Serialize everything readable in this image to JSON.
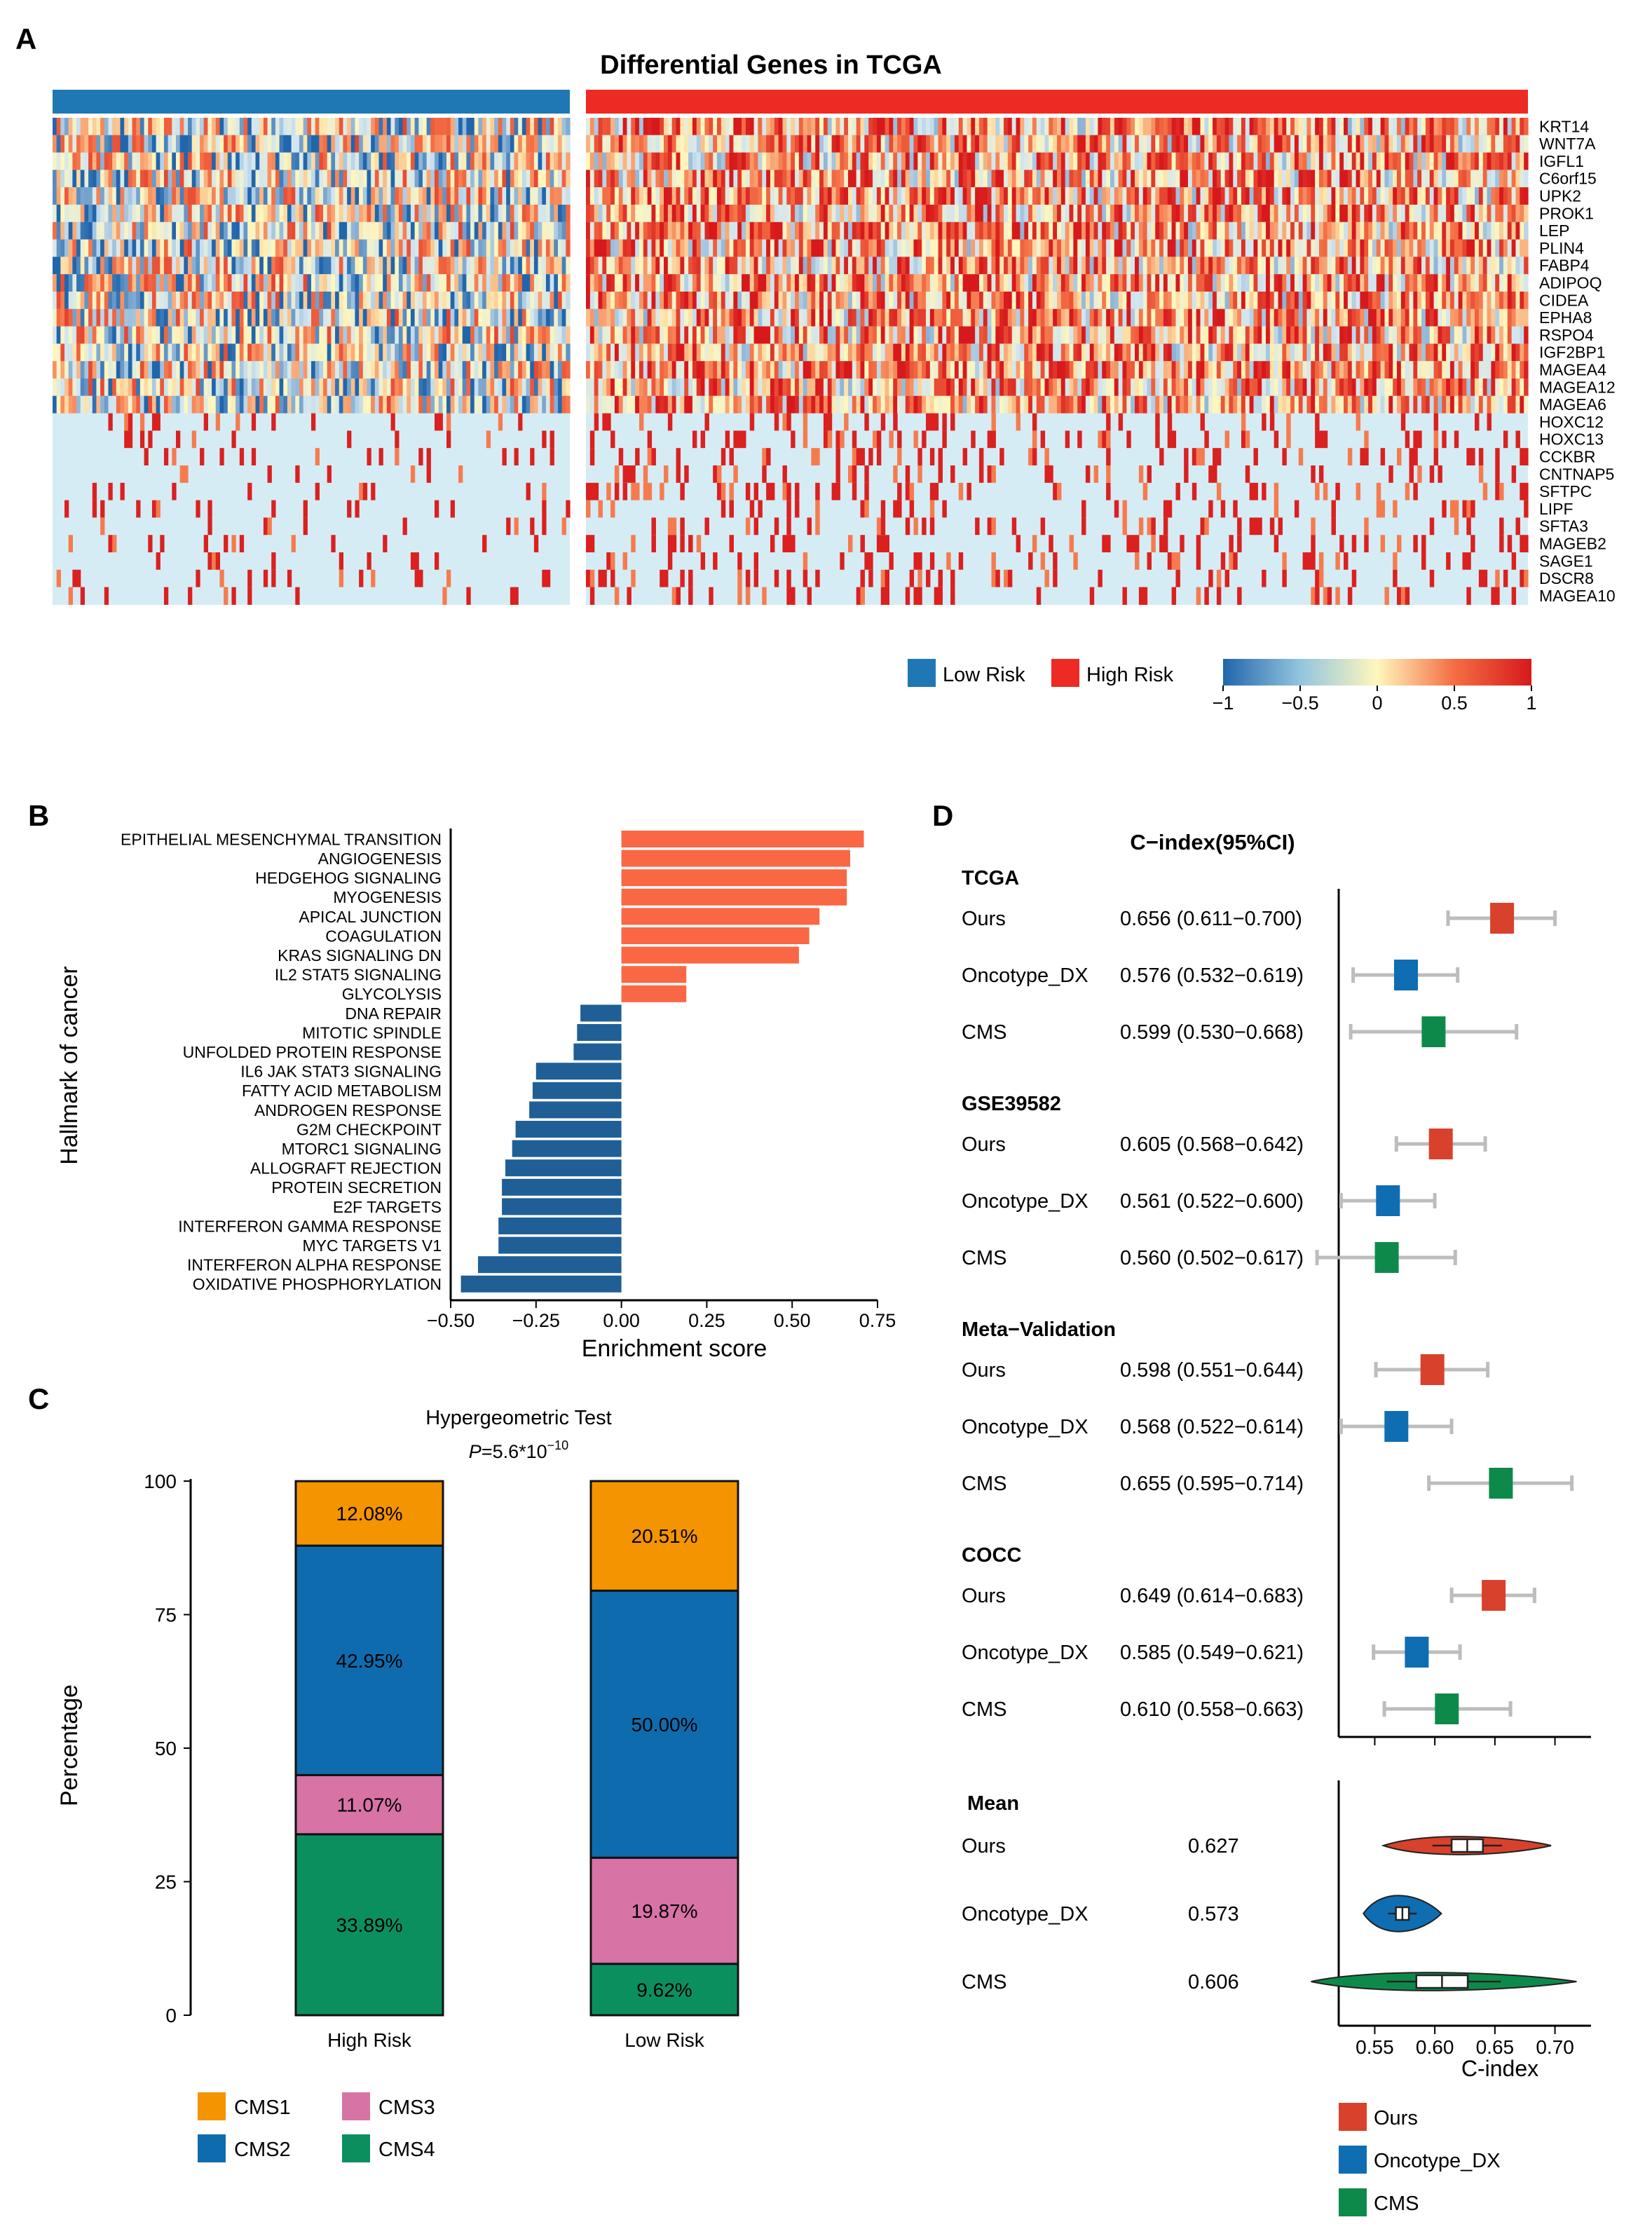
{
  "panels": {
    "a": "A",
    "b": "B",
    "c": "C",
    "d": "D"
  },
  "chart_data": [
    {
      "type": "heatmap",
      "title": "Differential Genes in TCGA",
      "rows": [
        "KRT14",
        "WNT7A",
        "IGFL1",
        "C6orf15",
        "UPK2",
        "PROK1",
        "LEP",
        "PLIN4",
        "FABP4",
        "ADIPOQ",
        "CIDEA",
        "EPHA8",
        "RSPO4",
        "IGF2BP1",
        "MAGEA4",
        "MAGEA12",
        "MAGEA6",
        "HOXC12",
        "HOXC13",
        "CCKBR",
        "CNTNAP5",
        "SFTPC",
        "LIPF",
        "SFTA3",
        "MAGEB2",
        "SAGE1",
        "DSCR8",
        "MAGEA10"
      ],
      "groups": [
        {
          "name": "Low Risk",
          "color": "#1f78b4"
        },
        {
          "name": "High Risk",
          "color": "#ee2a24"
        }
      ],
      "color_scale": {
        "min": -1,
        "max": 1,
        "ticks": [
          "−1",
          "−0.5",
          "0",
          "0.5",
          "1"
        ],
        "colors": [
          "#2166ac",
          "#d1e5f0",
          "#fff7bc",
          "#f46d43",
          "#d7191c"
        ]
      }
    },
    {
      "type": "bar",
      "orientation": "horizontal",
      "xlabel": "Enrichment score",
      "ylabel": "Hallmark of cancer",
      "xlim": [
        -0.5,
        0.75
      ],
      "xticks": [
        "−0.50",
        "−0.25",
        "0.00",
        "0.25",
        "0.50",
        "0.75"
      ],
      "tick_values": [
        -0.5,
        -0.25,
        0,
        0.25,
        0.5,
        0.75
      ],
      "categories": [
        "EPITHELIAL MESENCHYMAL TRANSITION",
        "ANGIOGENESIS",
        "HEDGEHOG SIGNALING",
        "MYOGENESIS",
        "APICAL JUNCTION",
        "COAGULATION",
        "KRAS SIGNALING DN",
        "IL2 STAT5 SIGNALING",
        "GLYCOLYSIS",
        "DNA REPAIR",
        "MITOTIC SPINDLE",
        "UNFOLDED PROTEIN RESPONSE",
        "IL6 JAK STAT3 SIGNALING",
        "FATTY ACID METABOLISM",
        "ANDROGEN RESPONSE",
        "G2M CHECKPOINT",
        "MTORC1 SIGNALING",
        "ALLOGRAFT REJECTION",
        "PROTEIN SECRETION",
        "E2F TARGETS",
        "INTERFERON GAMMA RESPONSE",
        "MYC TARGETS V1",
        "INTERFERON ALPHA RESPONSE",
        "OXIDATIVE PHOSPHORYLATION"
      ],
      "values": [
        0.71,
        0.67,
        0.66,
        0.66,
        0.58,
        0.55,
        0.52,
        0.19,
        0.19,
        -0.12,
        -0.13,
        -0.14,
        -0.25,
        -0.26,
        -0.27,
        -0.31,
        -0.32,
        -0.34,
        -0.35,
        -0.35,
        -0.36,
        -0.36,
        -0.42,
        -0.47
      ],
      "colors": {
        "positive": "#fa6745",
        "negative": "#1f5f95"
      }
    },
    {
      "type": "bar",
      "stacked": true,
      "title": "Hypergeometric Test",
      "subtitle_prefix": "P",
      "subtitle_value": "=5.6*10",
      "subtitle_exp": "−10",
      "ylabel": "Percentage",
      "ylim": [
        0,
        100
      ],
      "yticks": [
        "0",
        "25",
        "50",
        "75",
        "100"
      ],
      "tick_values": [
        0,
        25,
        50,
        75,
        100
      ],
      "categories": [
        "High Risk",
        "Low Risk"
      ],
      "series": [
        {
          "name": "CMS4",
          "color": "#0c8f5f",
          "values": [
            33.89,
            9.62
          ],
          "labels": [
            "33.89%",
            "9.62%"
          ]
        },
        {
          "name": "CMS3",
          "color": "#d873a6",
          "values": [
            11.07,
            19.87
          ],
          "labels": [
            "11.07%",
            "19.87%"
          ]
        },
        {
          "name": "CMS2",
          "color": "#0e6cae",
          "values": [
            42.95,
            50.0
          ],
          "labels": [
            "42.95%",
            "50.00%"
          ]
        },
        {
          "name": "CMS1",
          "color": "#f39400",
          "values": [
            12.08,
            20.51
          ],
          "labels": [
            "12.08%",
            "20.51%"
          ]
        }
      ],
      "legend": [
        "CMS1",
        "CMS3",
        "CMS2",
        "CMS4"
      ]
    },
    {
      "type": "scatter",
      "title": "C−index(95%CI)",
      "xlabel": "C-index",
      "xlim": [
        0.52,
        0.73
      ],
      "xticks": [
        "0.55",
        "0.60",
        "0.65",
        "0.70"
      ],
      "tick_values": [
        0.55,
        0.6,
        0.65,
        0.7
      ],
      "model_colors": {
        "Ours": "#d8412c",
        "Oncotype_DX": "#0f6db2",
        "CMS": "#0d8a4a"
      },
      "groups": [
        {
          "name": "TCGA",
          "rows": [
            {
              "model": "Ours",
              "text": "0.656 (0.611−0.700)",
              "est": 0.656,
              "lo": 0.611,
              "hi": 0.7
            },
            {
              "model": "Oncotype_DX",
              "text": "0.576 (0.532−0.619)",
              "est": 0.576,
              "lo": 0.532,
              "hi": 0.619
            },
            {
              "model": "CMS",
              "text": "0.599 (0.530−0.668)",
              "est": 0.599,
              "lo": 0.53,
              "hi": 0.668
            }
          ]
        },
        {
          "name": "GSE39582",
          "rows": [
            {
              "model": "Ours",
              "text": "0.605 (0.568−0.642)",
              "est": 0.605,
              "lo": 0.568,
              "hi": 0.642
            },
            {
              "model": "Oncotype_DX",
              "text": "0.561 (0.522−0.600)",
              "est": 0.561,
              "lo": 0.522,
              "hi": 0.6
            },
            {
              "model": "CMS",
              "text": "0.560 (0.502−0.617)",
              "est": 0.56,
              "lo": 0.502,
              "hi": 0.617
            }
          ]
        },
        {
          "name": "Meta−Validation",
          "rows": [
            {
              "model": "Ours",
              "text": "0.598 (0.551−0.644)",
              "est": 0.598,
              "lo": 0.551,
              "hi": 0.644
            },
            {
              "model": "Oncotype_DX",
              "text": "0.568 (0.522−0.614)",
              "est": 0.568,
              "lo": 0.522,
              "hi": 0.614
            },
            {
              "model": "CMS",
              "text": "0.655 (0.595−0.714)",
              "est": 0.655,
              "lo": 0.595,
              "hi": 0.714
            }
          ]
        },
        {
          "name": "COCC",
          "rows": [
            {
              "model": "Ours",
              "text": "0.649 (0.614−0.683)",
              "est": 0.649,
              "lo": 0.614,
              "hi": 0.683
            },
            {
              "model": "Oncotype_DX",
              "text": "0.585 (0.549−0.621)",
              "est": 0.585,
              "lo": 0.549,
              "hi": 0.621
            },
            {
              "model": "CMS",
              "text": "0.610 (0.558−0.663)",
              "est": 0.61,
              "lo": 0.558,
              "hi": 0.663
            }
          ]
        }
      ],
      "mean": {
        "name": "Mean",
        "rows": [
          {
            "model": "Ours",
            "text": "0.627",
            "mean": 0.627,
            "min": 0.598,
            "max": 0.656
          },
          {
            "model": "Oncotype_DX",
            "text": "0.573",
            "mean": 0.573,
            "min": 0.561,
            "max": 0.585
          },
          {
            "model": "CMS",
            "text": "0.606",
            "mean": 0.606,
            "min": 0.56,
            "max": 0.655
          }
        ]
      },
      "legend": [
        "Ours",
        "Oncotype_DX",
        "CMS"
      ]
    }
  ]
}
